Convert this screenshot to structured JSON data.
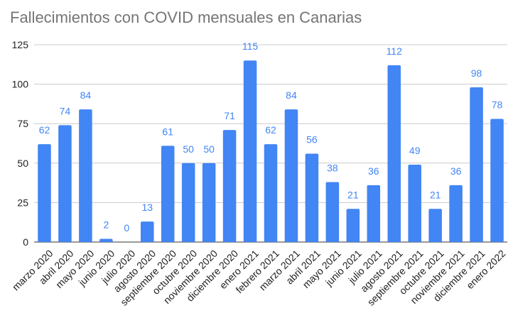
{
  "chart_data": {
    "type": "bar",
    "title": "Fallecimientos con COVID mensuales en Canarias",
    "xlabel": "",
    "ylabel": "",
    "ylim": [
      0,
      125
    ],
    "yticks": [
      0,
      25,
      50,
      75,
      100,
      125
    ],
    "grid": true,
    "legend": "none",
    "bar_color": "#4285F4",
    "label_color": "#4285F4",
    "categories": [
      "marzo 2020",
      "abril 2020",
      "mayo 2020",
      "junio 2020",
      "julio 2020",
      "agosto 2020",
      "septiembre 2020",
      "octubre 2020",
      "noviembre 2020",
      "diciembre 2020",
      "enero 2021",
      "febrero 2021",
      "marzo 2021",
      "abril 2021",
      "mayo 2021",
      "junio 2021",
      "julio 2021",
      "agosto 2021",
      "septiembre 2021",
      "octubre 2021",
      "noviembre 2021",
      "diciembre 2021",
      "enero 2022"
    ],
    "values": [
      62,
      74,
      84,
      2,
      0,
      13,
      61,
      50,
      50,
      71,
      115,
      62,
      84,
      56,
      38,
      21,
      36,
      112,
      49,
      21,
      36,
      98,
      78
    ]
  }
}
